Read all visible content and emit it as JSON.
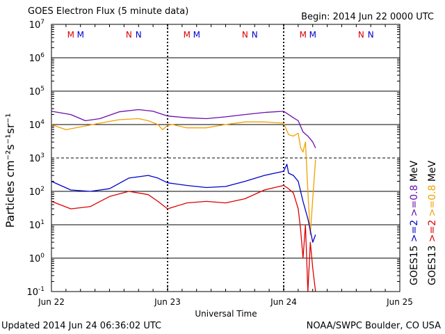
{
  "header": {
    "title": "GOES Electron Flux (5 minute data)",
    "begin": "Begin: 2014 Jun 22 0000 UTC"
  },
  "footer": {
    "updated": "Updated 2014 Jun 24 06:36:02 UTC",
    "credit": "NOAA/SWPC Boulder, CO USA"
  },
  "chart_data": {
    "type": "line",
    "title": "GOES Electron Flux (5 minute data)",
    "xlabel": "Universal Time",
    "ylabel": "Particles cm⁻²s⁻¹sr⁻¹",
    "y_scale": "log",
    "ylim": [
      0.1,
      10000000
    ],
    "y_ticks": [
      {
        "value": 0.1,
        "base": "10",
        "exp": "-1"
      },
      {
        "value": 1,
        "base": "10",
        "exp": "0"
      },
      {
        "value": 10,
        "base": "10",
        "exp": "1"
      },
      {
        "value": 100,
        "base": "10",
        "exp": "2"
      },
      {
        "value": 1000,
        "base": "10",
        "exp": "3"
      },
      {
        "value": 10000,
        "base": "10",
        "exp": "4"
      },
      {
        "value": 100000,
        "base": "10",
        "exp": "5"
      },
      {
        "value": 1000000,
        "base": "10",
        "exp": "6"
      },
      {
        "value": 10000000,
        "base": "10",
        "exp": "7"
      }
    ],
    "xlim": [
      "2014-06-22 00:00",
      "2014-06-25 00:00"
    ],
    "x_ticks": [
      {
        "value": "2014-06-22 00:00",
        "label": "Jun 22"
      },
      {
        "value": "2014-06-23 00:00",
        "label": "Jun 23"
      },
      {
        "value": "2014-06-24 00:00",
        "label": "Jun 24"
      },
      {
        "value": "2014-06-25 00:00",
        "label": "Jun 25"
      }
    ],
    "threshold": {
      "value": 1000,
      "style": "dashed"
    },
    "grid": true,
    "markers": [
      {
        "t": "2014-06-22 04:00",
        "label": "M",
        "color": "#dd0000"
      },
      {
        "t": "2014-06-22 06:00",
        "label": "M",
        "color": "#0000cc"
      },
      {
        "t": "2014-06-22 16:00",
        "label": "N",
        "color": "#dd0000"
      },
      {
        "t": "2014-06-22 18:00",
        "label": "N",
        "color": "#0000cc"
      },
      {
        "t": "2014-06-23 04:00",
        "label": "M",
        "color": "#dd0000"
      },
      {
        "t": "2014-06-23 06:00",
        "label": "M",
        "color": "#0000cc"
      },
      {
        "t": "2014-06-23 16:00",
        "label": "N",
        "color": "#dd0000"
      },
      {
        "t": "2014-06-23 18:00",
        "label": "N",
        "color": "#0000cc"
      },
      {
        "t": "2014-06-24 04:00",
        "label": "M",
        "color": "#dd0000"
      },
      {
        "t": "2014-06-24 06:00",
        "label": "M",
        "color": "#0000cc"
      },
      {
        "t": "2014-06-24 16:00",
        "label": "N",
        "color": "#dd0000"
      },
      {
        "t": "2014-06-24 18:00",
        "label": "N",
        "color": "#0000cc"
      }
    ],
    "legend": {
      "placement": "right-vertical",
      "entries": [
        {
          "satellite": "GOES15",
          "items": [
            {
              "text": ">=2",
              "color": "#0000cc"
            },
            {
              "text": ">=0.8",
              "color": "#6a0dad"
            },
            {
              "text": "MeV",
              "color": "#000000"
            }
          ]
        },
        {
          "satellite": "GOES13",
          "items": [
            {
              "text": ">=2",
              "color": "#dd0000"
            },
            {
              "text": ">=0.8",
              "color": "#f0a000"
            },
            {
              "text": "MeV",
              "color": "#000000"
            }
          ]
        }
      ]
    },
    "series": [
      {
        "name": "GOES15 >=0.8 MeV",
        "color": "#6a0dad",
        "x": [
          "2014-06-22 00:00",
          "2014-06-22 04:00",
          "2014-06-22 07:00",
          "2014-06-22 10:00",
          "2014-06-22 14:00",
          "2014-06-22 18:00",
          "2014-06-22 21:00",
          "2014-06-23 00:00",
          "2014-06-23 04:00",
          "2014-06-23 08:00",
          "2014-06-23 12:00",
          "2014-06-23 16:00",
          "2014-06-23 20:00",
          "2014-06-24 00:00",
          "2014-06-24 01:00",
          "2014-06-24 02:00",
          "2014-06-24 03:00",
          "2014-06-24 04:00",
          "2014-06-24 05:00",
          "2014-06-24 06:00",
          "2014-06-24 06:35"
        ],
        "values": [
          25000,
          20000,
          13000,
          15000,
          24000,
          28000,
          25000,
          18000,
          16000,
          15000,
          17000,
          20000,
          23000,
          25000,
          20000,
          16000,
          13000,
          6000,
          4500,
          3000,
          2000
        ]
      },
      {
        "name": "GOES13 >=0.8 MeV",
        "color": "#f0a000",
        "x": [
          "2014-06-22 00:00",
          "2014-06-22 03:00",
          "2014-06-22 06:00",
          "2014-06-22 10:00",
          "2014-06-22 14:00",
          "2014-06-22 18:00",
          "2014-06-22 20:00",
          "2014-06-22 22:00",
          "2014-06-22 23:00",
          "2014-06-23 00:00",
          "2014-06-23 01:00",
          "2014-06-23 04:00",
          "2014-06-23 08:00",
          "2014-06-23 12:00",
          "2014-06-23 16:00",
          "2014-06-23 20:00",
          "2014-06-24 00:00",
          "2014-06-24 01:00",
          "2014-06-24 02:00",
          "2014-06-24 03:00",
          "2014-06-24 03:30",
          "2014-06-24 04:00",
          "2014-06-24 04:30",
          "2014-06-24 05:00",
          "2014-06-24 05:30",
          "2014-06-24 06:00",
          "2014-06-24 06:35"
        ],
        "values": [
          10000,
          7000,
          8500,
          11000,
          14000,
          15000,
          13000,
          10000,
          7000,
          9500,
          10000,
          8000,
          8000,
          10000,
          12000,
          12000,
          11000,
          5000,
          4500,
          5500,
          2000,
          1500,
          3000,
          100,
          5,
          60,
          900
        ]
      },
      {
        "name": "GOES15 >=2 MeV",
        "color": "#0000cc",
        "x": [
          "2014-06-22 00:00",
          "2014-06-22 04:00",
          "2014-06-22 08:00",
          "2014-06-22 12:00",
          "2014-06-22 16:00",
          "2014-06-22 20:00",
          "2014-06-22 22:00",
          "2014-06-23 00:00",
          "2014-06-23 04:00",
          "2014-06-23 08:00",
          "2014-06-23 12:00",
          "2014-06-23 16:00",
          "2014-06-23 20:00",
          "2014-06-24 00:00",
          "2014-06-24 00:40",
          "2014-06-24 01:00",
          "2014-06-24 02:00",
          "2014-06-24 03:00",
          "2014-06-24 04:00",
          "2014-06-24 05:00",
          "2014-06-24 06:00",
          "2014-06-24 06:35"
        ],
        "values": [
          200,
          110,
          100,
          120,
          250,
          300,
          250,
          180,
          150,
          130,
          140,
          200,
          300,
          400,
          650,
          350,
          300,
          200,
          50,
          15,
          3,
          5
        ]
      },
      {
        "name": "GOES13 >=2 MeV",
        "color": "#dd0000",
        "x": [
          "2014-06-22 00:00",
          "2014-06-22 04:00",
          "2014-06-22 08:00",
          "2014-06-22 12:00",
          "2014-06-22 16:00",
          "2014-06-22 20:00",
          "2014-06-22 22:00",
          "2014-06-23 00:00",
          "2014-06-23 04:00",
          "2014-06-23 08:00",
          "2014-06-23 12:00",
          "2014-06-23 16:00",
          "2014-06-23 20:00",
          "2014-06-24 00:00",
          "2014-06-24 01:00",
          "2014-06-24 02:00",
          "2014-06-24 03:00",
          "2014-06-24 03:30",
          "2014-06-24 04:00",
          "2014-06-24 04:30",
          "2014-06-24 05:00",
          "2014-06-24 05:30",
          "2014-06-24 06:00",
          "2014-06-24 06:35"
        ],
        "values": [
          50,
          30,
          35,
          70,
          100,
          80,
          50,
          30,
          45,
          50,
          45,
          60,
          110,
          150,
          120,
          90,
          30,
          7,
          1,
          10,
          0.1,
          3,
          0.5,
          0.1
        ]
      }
    ]
  }
}
